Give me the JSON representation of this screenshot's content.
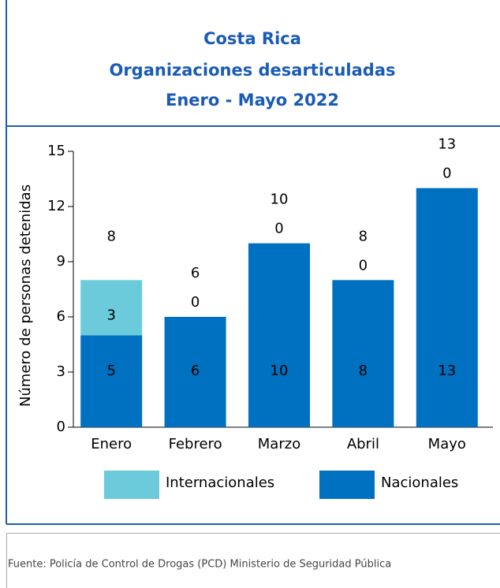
{
  "chart_data": {
    "type": "stacked_bar",
    "title": [
      "Costa Rica",
      "Organizaciones desarticuladas",
      "Enero - Mayo 2022"
    ],
    "ylabel": "Número de personas detenidas",
    "categories": [
      "Enero",
      "Febrero",
      "Marzo",
      "Abril",
      "Mayo"
    ],
    "series": [
      {
        "name": "Nacionales",
        "color": "#0070c0",
        "values": [
          5,
          6,
          10,
          8,
          13
        ]
      },
      {
        "name": "Internacionales",
        "color": "#6ccbdb",
        "values": [
          3,
          0,
          0,
          0,
          0
        ]
      }
    ],
    "totals": [
      8,
      6,
      10,
      8,
      13
    ],
    "ylim": [
      0,
      15
    ],
    "yticks": [
      0,
      3,
      6,
      9,
      12,
      15
    ],
    "source": "Fuente: Policía de Control de Drogas (PCD) Ministerio de Seguridad Pública"
  }
}
